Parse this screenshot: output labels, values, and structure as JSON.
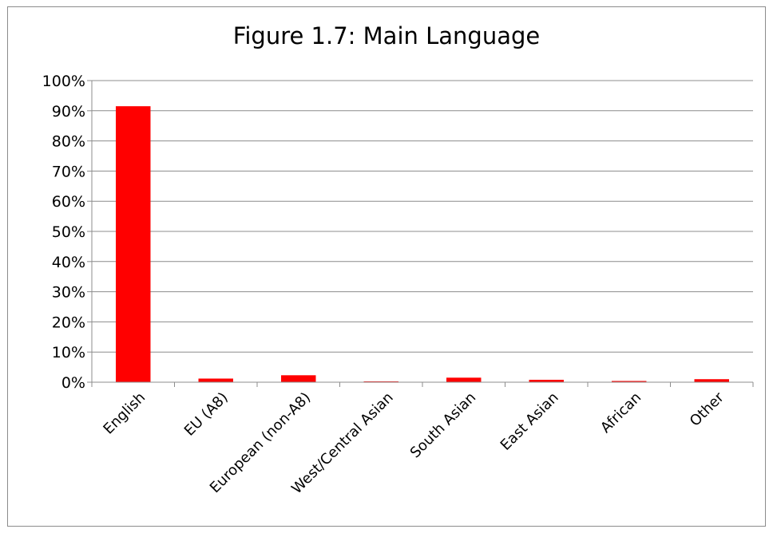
{
  "chart_data": {
    "type": "bar",
    "title": "Figure 1.7: Main Language",
    "xlabel": "",
    "ylabel": "",
    "categories": [
      "English",
      "EU (A8)",
      "European (non-A8)",
      "West/Central Asian",
      "South Asian",
      "East Asian",
      "African",
      "Other"
    ],
    "values": [
      91.5,
      1.2,
      2.3,
      0.1,
      1.5,
      0.8,
      0.4,
      1.0
    ],
    "y_ticks": [
      "0%",
      "10%",
      "20%",
      "30%",
      "40%",
      "50%",
      "60%",
      "70%",
      "80%",
      "90%",
      "100%"
    ],
    "ylim": [
      0,
      100
    ],
    "grid": true,
    "legend": "none",
    "bar_color": "#ff0000"
  }
}
